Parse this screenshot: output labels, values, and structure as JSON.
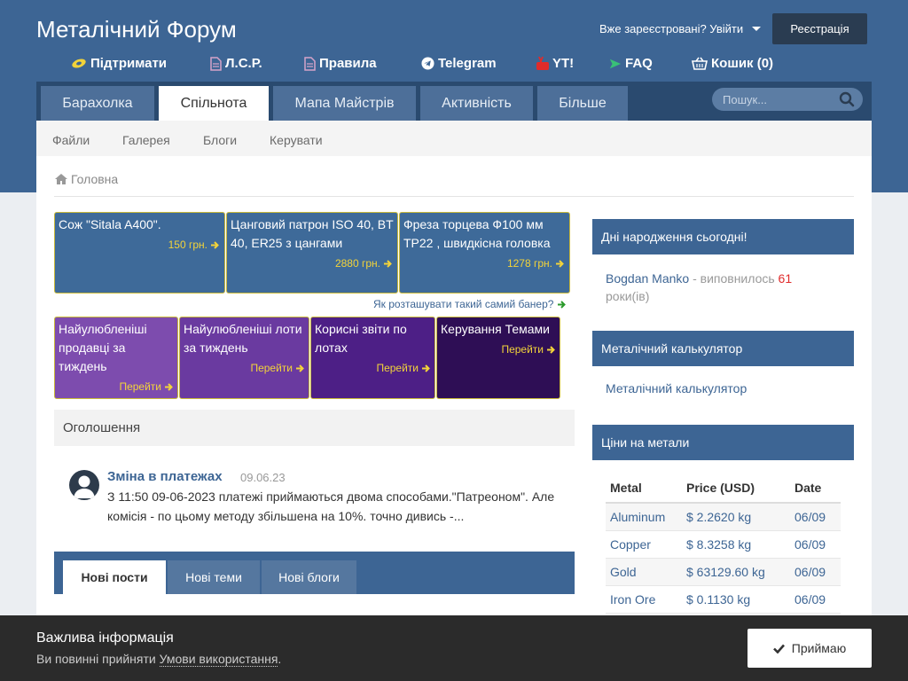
{
  "header": {
    "logo": "Металічний Форум",
    "login": "Вже зареєстровані? Увійти",
    "register": "Реєстрація"
  },
  "quicklinks": [
    {
      "label": "Підтримати",
      "icon": "banknote-icon",
      "color": "#f2d33a"
    },
    {
      "label": "Л.С.Р.",
      "icon": "document-icon",
      "color": "#d6a3c9"
    },
    {
      "label": "Правила",
      "icon": "document-icon",
      "color": "#d6a3c9"
    },
    {
      "label": "Telegram",
      "icon": "telegram-icon",
      "color": "#ffffff"
    },
    {
      "label": "YT!",
      "icon": "youtube-icon",
      "color": "#e02b2b"
    },
    {
      "label": "FAQ",
      "icon": "plane-icon",
      "color": "#39c177"
    },
    {
      "label": "Кошик (0)",
      "icon": "basket-icon",
      "color": "#ffffff"
    }
  ],
  "nav": {
    "tabs": [
      "Барахолка",
      "Спільнота",
      "Мапа Майстрів",
      "Активність",
      "Більше"
    ],
    "active": "Спільнота",
    "search_placeholder": "Пошук..."
  },
  "subnav": [
    "Файли",
    "Галерея",
    "Блоги",
    "Керувати"
  ],
  "breadcrumb": "Головна",
  "banners": [
    {
      "title": "Сож \"Sitala A400\".",
      "price": "150 грн."
    },
    {
      "title": "Цанговий патрон ISO 40, BT 40, ER25 з цангами",
      "price": "2880 грн."
    },
    {
      "title": "Фреза торцева Ф100 мм TP22 , швидкісна головка",
      "price": "1278 грн."
    }
  ],
  "banner_advert": "Як розташувати такий самий банер?",
  "tiles": [
    {
      "title": "Найулюбленіші продавці за тиждень",
      "link": "Перейти",
      "color": "#7d4cae"
    },
    {
      "title": "Найулюбленіші лоти за тиждень",
      "link": "Перейти",
      "color": "#6a3aa0"
    },
    {
      "title": "Корисні звіти по лотах",
      "link": "Перейти",
      "color": "#4d1f86"
    },
    {
      "title": "Керування Темами",
      "link": "Перейти",
      "color": "#2e0e55"
    }
  ],
  "announcements": {
    "heading": "Оголошення",
    "title": "Зміна в платежах",
    "date": "09.06.23",
    "text": "З 11:50 09-06-2023 платежі приймаються двома способами.\"Патреоном\". Але комісія - по цьому методу збільшена на 10%. точно дивись -..."
  },
  "post_tabs": [
    "Нові пости",
    "Нові теми",
    "Нові блоги"
  ],
  "sidebar": {
    "birthdays": {
      "heading": "Дні народження сьогодні!",
      "name": "Bogdan Manko",
      "text": " - виповнилось ",
      "age": "61",
      "suffix": " роки(ів)"
    },
    "calculator": {
      "heading": "Металічний калькулятор",
      "link": "Металічний калькулятор"
    },
    "prices": {
      "heading": "Ціни на метали",
      "columns": [
        "Metal",
        "Price (USD)",
        "Date"
      ],
      "rows": [
        [
          "Aluminum",
          "$ 2.2620 kg",
          "06/09"
        ],
        [
          "Copper",
          "$ 8.3258 kg",
          "06/09"
        ],
        [
          "Gold",
          "$ 63129.60 kg",
          "06/09"
        ],
        [
          "Iron Ore",
          "$ 0.1130 kg",
          "06/09"
        ]
      ]
    }
  },
  "cookie": {
    "heading": "Важлива інформація",
    "text": "Ви повинні прийняти ",
    "link": "Умови використання",
    "end": ".",
    "accept": "Приймаю"
  }
}
